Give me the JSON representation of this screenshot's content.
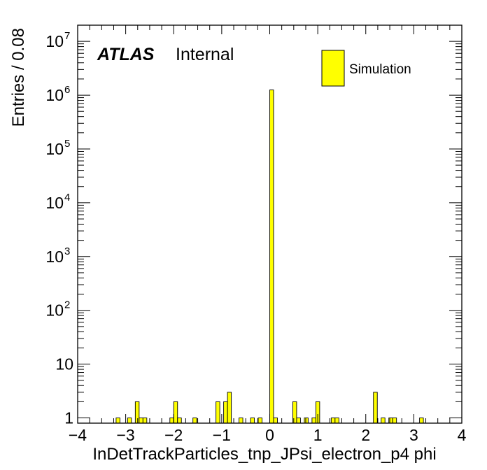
{
  "chart_data": {
    "type": "bar",
    "title": "",
    "experiment": "ATLAS",
    "status_label": "Internal",
    "xlabel": "InDetTrackParticles_tnp_JPsi_electron_p4 phi",
    "ylabel": "Entries / 0.08",
    "xlim": [
      -4,
      4
    ],
    "ylim": [
      0.8,
      20000000
    ],
    "y_scale": "log",
    "bin_width": 0.08,
    "x_ticks": [
      "−4",
      "−3",
      "−2",
      "−1",
      "0",
      "1",
      "2",
      "3",
      "4"
    ],
    "y_ticks": [
      {
        "base": "1",
        "exp": ""
      },
      {
        "base": "10",
        "exp": ""
      },
      {
        "base": "10",
        "exp": "2"
      },
      {
        "base": "10",
        "exp": "3"
      },
      {
        "base": "10",
        "exp": "4"
      },
      {
        "base": "10",
        "exp": "5"
      },
      {
        "base": "10",
        "exp": "6"
      },
      {
        "base": "10",
        "exp": "7"
      }
    ],
    "legend": {
      "position": "top-right",
      "entries": [
        {
          "label": "Simulation",
          "color": "#ffff00"
        }
      ]
    },
    "series": [
      {
        "name": "Simulation",
        "color": "#ffff00",
        "bins": [
          {
            "x": -3.16,
            "y": 1
          },
          {
            "x": -2.92,
            "y": 1
          },
          {
            "x": -2.76,
            "y": 2
          },
          {
            "x": -2.68,
            "y": 1
          },
          {
            "x": -2.6,
            "y": 1
          },
          {
            "x": -2.04,
            "y": 1
          },
          {
            "x": -1.96,
            "y": 2
          },
          {
            "x": -1.88,
            "y": 1
          },
          {
            "x": -1.56,
            "y": 1
          },
          {
            "x": -1.08,
            "y": 2
          },
          {
            "x": -0.92,
            "y": 2
          },
          {
            "x": -0.84,
            "y": 3
          },
          {
            "x": -0.6,
            "y": 1
          },
          {
            "x": -0.36,
            "y": 1
          },
          {
            "x": -0.2,
            "y": 1
          },
          {
            "x": 0.04,
            "y": 1250000
          },
          {
            "x": 0.12,
            "y": 1
          },
          {
            "x": 0.52,
            "y": 2
          },
          {
            "x": 0.6,
            "y": 1
          },
          {
            "x": 0.76,
            "y": 1
          },
          {
            "x": 0.92,
            "y": 1
          },
          {
            "x": 1.0,
            "y": 2
          },
          {
            "x": 1.32,
            "y": 1
          },
          {
            "x": 1.4,
            "y": 1
          },
          {
            "x": 2.2,
            "y": 3
          },
          {
            "x": 2.36,
            "y": 1
          },
          {
            "x": 2.52,
            "y": 1
          },
          {
            "x": 2.6,
            "y": 1
          },
          {
            "x": 3.16,
            "y": 1
          }
        ]
      }
    ]
  }
}
